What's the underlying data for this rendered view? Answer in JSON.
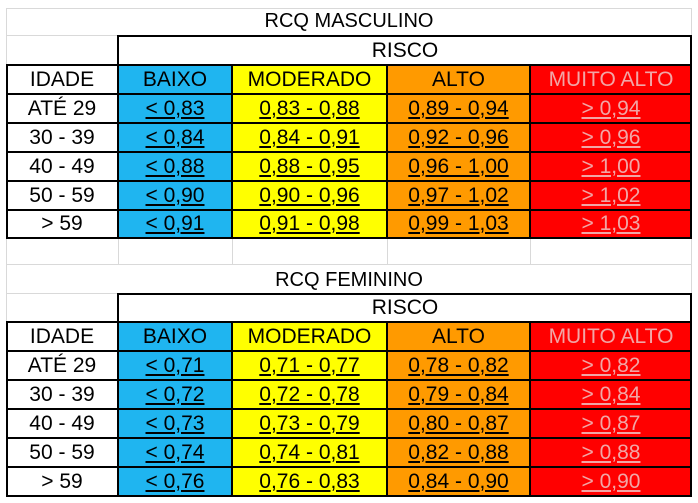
{
  "colors": {
    "baixo": "#1FB5F0",
    "moderado": "#FFFF00",
    "alto": "#FF9A00",
    "muito_alto": "#FF0000",
    "muito_alto_text": "#F1A6A6"
  },
  "tables": [
    {
      "title": "RCQ MASCULINO",
      "risk_header": "RISCO",
      "columns": [
        "IDADE",
        "BAIXO",
        "MODERADO",
        "ALTO",
        "MUITO ALTO"
      ],
      "rows": [
        [
          "ATÉ 29",
          "< 0,83",
          "0,83 - 0,88",
          "0,89 - 0,94",
          "> 0,94"
        ],
        [
          "30 - 39",
          "< 0,84",
          "0,84 - 0,91",
          "0,92 - 0,96",
          "> 0,96"
        ],
        [
          "40 - 49",
          "< 0,88",
          "0,88 - 0,95",
          "0,96 - 1,00",
          "> 1,00"
        ],
        [
          "50 - 59",
          "< 0,90",
          "0,90 - 0,96",
          "0,97 - 1,02",
          "> 1,02"
        ],
        [
          "> 59",
          "< 0,91",
          "0,91 - 0,98",
          "0,99 - 1,03",
          "> 1,03"
        ]
      ]
    },
    {
      "title": "RCQ FEMININO",
      "risk_header": "RISCO",
      "columns": [
        "IDADE",
        "BAIXO",
        "MODERADO",
        "ALTO",
        "MUITO ALTO"
      ],
      "rows": [
        [
          "ATÉ 29",
          "< 0,71",
          "0,71 - 0,77",
          "0,78 - 0,82",
          "> 0,82"
        ],
        [
          "30 - 39",
          "< 0,72",
          "0,72 - 0,78",
          "0,79 - 0,84",
          "> 0,84"
        ],
        [
          "40 - 49",
          "< 0,73",
          "0,73 - 0,79",
          "0,80 - 0,87",
          "> 0,87"
        ],
        [
          "50 - 59",
          "< 0,74",
          "0,74 - 0,81",
          "0,82 - 0,88",
          "> 0,88"
        ],
        [
          "> 59",
          "< 0,76",
          "0,76 - 0,83",
          "0,84 - 0,90",
          "> 0,90"
        ]
      ]
    }
  ]
}
